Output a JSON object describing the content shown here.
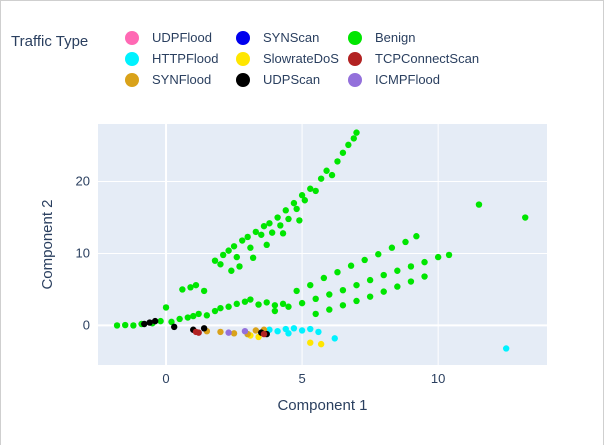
{
  "chart_data": {
    "type": "scatter",
    "title": "",
    "xlabel": "Component 1",
    "ylabel": "Component 2",
    "xlim": [
      -2.5,
      14
    ],
    "ylim": [
      -5.5,
      28
    ],
    "x_ticks": [
      0,
      5,
      10
    ],
    "y_ticks": [
      0,
      10,
      20
    ],
    "grid": true,
    "legend_title": "Traffic Type",
    "legend_position": "top",
    "series": [
      {
        "name": "Benign",
        "color": "#00e600",
        "points": [
          [
            -1.8,
            0.0
          ],
          [
            -1.5,
            0.05
          ],
          [
            -1.2,
            0.0
          ],
          [
            -0.9,
            0.2
          ],
          [
            -0.5,
            0.3
          ],
          [
            -0.2,
            0.6
          ],
          [
            0.0,
            2.5
          ],
          [
            0.2,
            0.5
          ],
          [
            0.5,
            0.9
          ],
          [
            0.8,
            1.1
          ],
          [
            1.0,
            1.3
          ],
          [
            1.2,
            1.6
          ],
          [
            1.5,
            1.4
          ],
          [
            1.8,
            2.0
          ],
          [
            2.0,
            2.4
          ],
          [
            2.3,
            2.6
          ],
          [
            2.6,
            3.0
          ],
          [
            2.9,
            3.3
          ],
          [
            3.1,
            3.6
          ],
          [
            3.4,
            2.9
          ],
          [
            3.7,
            3.2
          ],
          [
            4.0,
            2.8
          ],
          [
            4.3,
            3.0
          ],
          [
            0.6,
            5.0
          ],
          [
            0.9,
            5.3
          ],
          [
            1.1,
            5.6
          ],
          [
            1.4,
            4.8
          ],
          [
            1.8,
            9.0
          ],
          [
            2.0,
            8.5
          ],
          [
            2.1,
            9.8
          ],
          [
            2.3,
            10.4
          ],
          [
            2.5,
            11.0
          ],
          [
            2.6,
            9.5
          ],
          [
            2.8,
            11.8
          ],
          [
            3.0,
            12.3
          ],
          [
            3.1,
            10.8
          ],
          [
            3.3,
            13.0
          ],
          [
            3.5,
            12.6
          ],
          [
            3.6,
            13.8
          ],
          [
            3.8,
            14.2
          ],
          [
            3.9,
            12.9
          ],
          [
            4.1,
            15.0
          ],
          [
            4.2,
            13.9
          ],
          [
            4.4,
            16.0
          ],
          [
            4.5,
            14.8
          ],
          [
            4.7,
            17.0
          ],
          [
            4.8,
            16.2
          ],
          [
            5.0,
            18.1
          ],
          [
            5.1,
            17.4
          ],
          [
            5.3,
            19.0
          ],
          [
            5.5,
            18.7
          ],
          [
            5.7,
            20.4
          ],
          [
            5.9,
            21.5
          ],
          [
            6.1,
            20.9
          ],
          [
            6.3,
            22.8
          ],
          [
            6.5,
            24.0
          ],
          [
            6.7,
            25.1
          ],
          [
            6.9,
            26.0
          ],
          [
            7.0,
            26.8
          ],
          [
            2.4,
            7.6
          ],
          [
            2.7,
            8.2
          ],
          [
            3.2,
            9.4
          ],
          [
            3.7,
            11.2
          ],
          [
            4.3,
            12.8
          ],
          [
            4.9,
            14.6
          ],
          [
            4.0,
            2.0
          ],
          [
            4.5,
            2.6
          ],
          [
            5.0,
            3.1
          ],
          [
            5.5,
            3.7
          ],
          [
            6.0,
            4.3
          ],
          [
            6.5,
            4.9
          ],
          [
            7.0,
            5.6
          ],
          [
            7.5,
            6.3
          ],
          [
            8.0,
            7.0
          ],
          [
            8.5,
            7.6
          ],
          [
            9.0,
            8.2
          ],
          [
            9.5,
            8.8
          ],
          [
            10.0,
            9.5
          ],
          [
            10.4,
            9.8
          ],
          [
            4.8,
            4.8
          ],
          [
            5.3,
            5.6
          ],
          [
            5.8,
            6.6
          ],
          [
            6.3,
            7.4
          ],
          [
            6.8,
            8.3
          ],
          [
            7.3,
            9.1
          ],
          [
            7.8,
            9.9
          ],
          [
            8.3,
            10.8
          ],
          [
            8.8,
            11.6
          ],
          [
            9.2,
            12.4
          ],
          [
            5.5,
            1.6
          ],
          [
            6.0,
            2.2
          ],
          [
            6.5,
            2.8
          ],
          [
            7.0,
            3.4
          ],
          [
            7.5,
            4.0
          ],
          [
            8.0,
            4.7
          ],
          [
            8.5,
            5.4
          ],
          [
            9.0,
            6.1
          ],
          [
            9.5,
            6.8
          ],
          [
            11.5,
            16.8
          ],
          [
            13.2,
            15.0
          ]
        ]
      },
      {
        "name": "HTTPFlood",
        "color": "#00f2ff",
        "points": [
          [
            3.0,
            -1.2
          ],
          [
            3.5,
            -1.0
          ],
          [
            3.8,
            -0.6
          ],
          [
            4.1,
            -0.8
          ],
          [
            4.4,
            -0.5
          ],
          [
            4.7,
            -0.4
          ],
          [
            5.0,
            -0.7
          ],
          [
            5.3,
            -0.5
          ],
          [
            5.6,
            -0.9
          ],
          [
            4.5,
            -1.1
          ],
          [
            6.2,
            -1.8
          ],
          [
            12.5,
            -3.2
          ]
        ]
      },
      {
        "name": "SlowrateDoS",
        "color": "#ffe600",
        "points": [
          [
            5.3,
            -2.4
          ],
          [
            5.7,
            -2.6
          ],
          [
            3.4,
            -1.6
          ],
          [
            3.1,
            -1.4
          ]
        ]
      },
      {
        "name": "SYNFlood",
        "color": "#d9a21a",
        "points": [
          [
            1.5,
            -0.8
          ],
          [
            2.0,
            -0.9
          ],
          [
            2.5,
            -1.1
          ],
          [
            3.0,
            -1.2
          ],
          [
            3.3,
            -0.7
          ],
          [
            3.6,
            -0.6
          ]
        ]
      },
      {
        "name": "UDPScan",
        "color": "#000000",
        "points": [
          [
            -0.8,
            0.2
          ],
          [
            -0.6,
            0.4
          ],
          [
            -0.4,
            0.6
          ],
          [
            0.3,
            -0.2
          ],
          [
            1.0,
            -0.6
          ],
          [
            1.4,
            -0.4
          ],
          [
            3.5,
            -1.0
          ],
          [
            3.7,
            -1.2
          ]
        ]
      },
      {
        "name": "TCPConnectScan",
        "color": "#b22222",
        "points": [
          [
            1.1,
            -0.9
          ],
          [
            1.2,
            -1.0
          ],
          [
            3.6,
            -1.2
          ]
        ]
      },
      {
        "name": "ICMPFlood",
        "color": "#9370db",
        "points": [
          [
            2.3,
            -1.0
          ],
          [
            2.9,
            -0.8
          ]
        ]
      },
      {
        "name": "UDPFlood",
        "color": "#ff69b4",
        "points": []
      },
      {
        "name": "SYNScan",
        "color": "#0000ee",
        "points": []
      }
    ],
    "legend": [
      {
        "name": "UDPFlood",
        "color": "#ff69b4"
      },
      {
        "name": "SYNScan",
        "color": "#0000ee"
      },
      {
        "name": "Benign",
        "color": "#00e600"
      },
      {
        "name": "HTTPFlood",
        "color": "#00f2ff"
      },
      {
        "name": "SlowrateDoS",
        "color": "#ffe600"
      },
      {
        "name": "TCPConnectScan",
        "color": "#b22222"
      },
      {
        "name": "SYNFlood",
        "color": "#d9a21a"
      },
      {
        "name": "UDPScan",
        "color": "#000000"
      },
      {
        "name": "ICMPFlood",
        "color": "#9370db"
      }
    ],
    "plot_background": "#e5ecf6",
    "text_color": "#2a3f5f"
  }
}
